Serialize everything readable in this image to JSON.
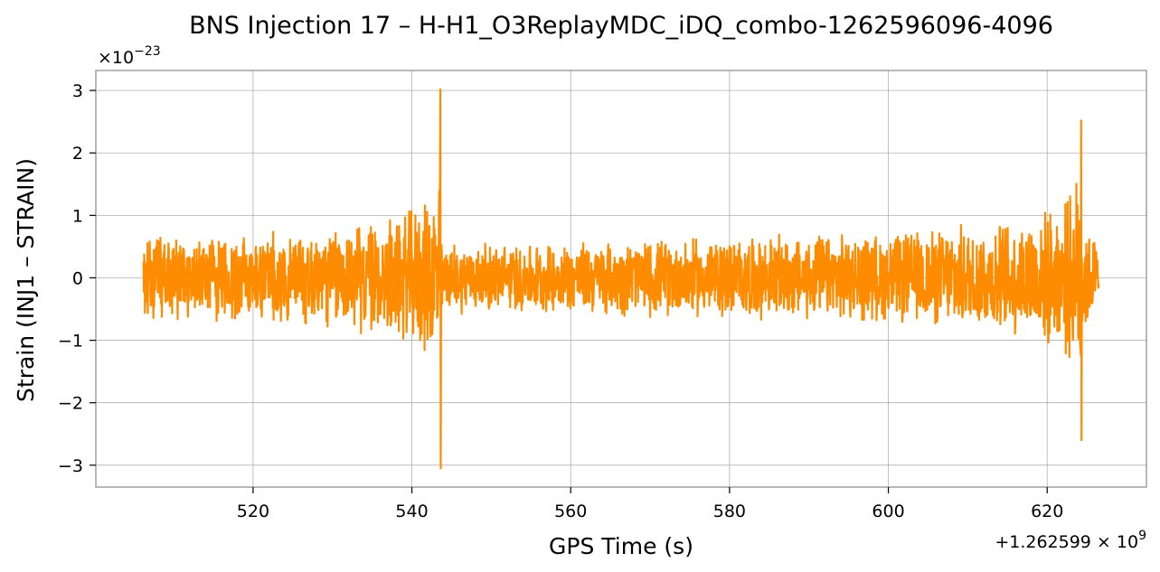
{
  "chart_data": {
    "type": "line",
    "title": "BNS Injection 17 – H-H1_O3ReplayMDC_iDQ_combo-1262596096-4096",
    "xlabel": "GPS Time (s)",
    "ylabel": "Strain (INJ1 – STRAIN)",
    "x_offset_text": "+1.262599 × 10",
    "x_offset_exp": "9",
    "y_scale_text": "×10",
    "y_scale_exp": "−23",
    "xlim": [
      500.2,
      632.5
    ],
    "ylim": [
      -3.35,
      3.32
    ],
    "x_ticks": [
      520,
      540,
      560,
      580,
      600,
      620
    ],
    "x_tick_labels": [
      "520",
      "540",
      "560",
      "580",
      "600",
      "620"
    ],
    "y_ticks": [
      -3,
      -2,
      -1,
      0,
      1,
      2,
      3
    ],
    "y_tick_labels": [
      "−3",
      "−2",
      "−1",
      "0",
      "1",
      "2",
      "3"
    ],
    "grid": true,
    "line_color": "#ff8c00",
    "series": [
      {
        "x_range": [
          506.2,
          626.5
        ],
        "noise_band": [
          [
            506.2,
            0.7
          ],
          [
            515,
            0.75
          ],
          [
            525,
            0.8
          ],
          [
            535,
            0.95
          ],
          [
            540,
            1.15
          ],
          [
            542.5,
            1.35
          ],
          [
            543.3,
            2.0
          ],
          [
            543.55,
            3.0
          ],
          [
            543.7,
            0.6
          ],
          [
            550,
            0.58
          ],
          [
            560,
            0.6
          ],
          [
            580,
            0.68
          ],
          [
            600,
            0.75
          ],
          [
            615,
            0.95
          ],
          [
            622,
            1.2
          ],
          [
            624.0,
            1.8
          ],
          [
            624.2,
            2.55
          ],
          [
            624.45,
            1.0
          ],
          [
            626.5,
            0.62
          ]
        ],
        "peaks": [
          {
            "x": 543.6,
            "max": 3.02,
            "min": -3.05
          },
          {
            "x": 624.3,
            "max": 2.52,
            "min": -2.6
          }
        ]
      }
    ]
  }
}
